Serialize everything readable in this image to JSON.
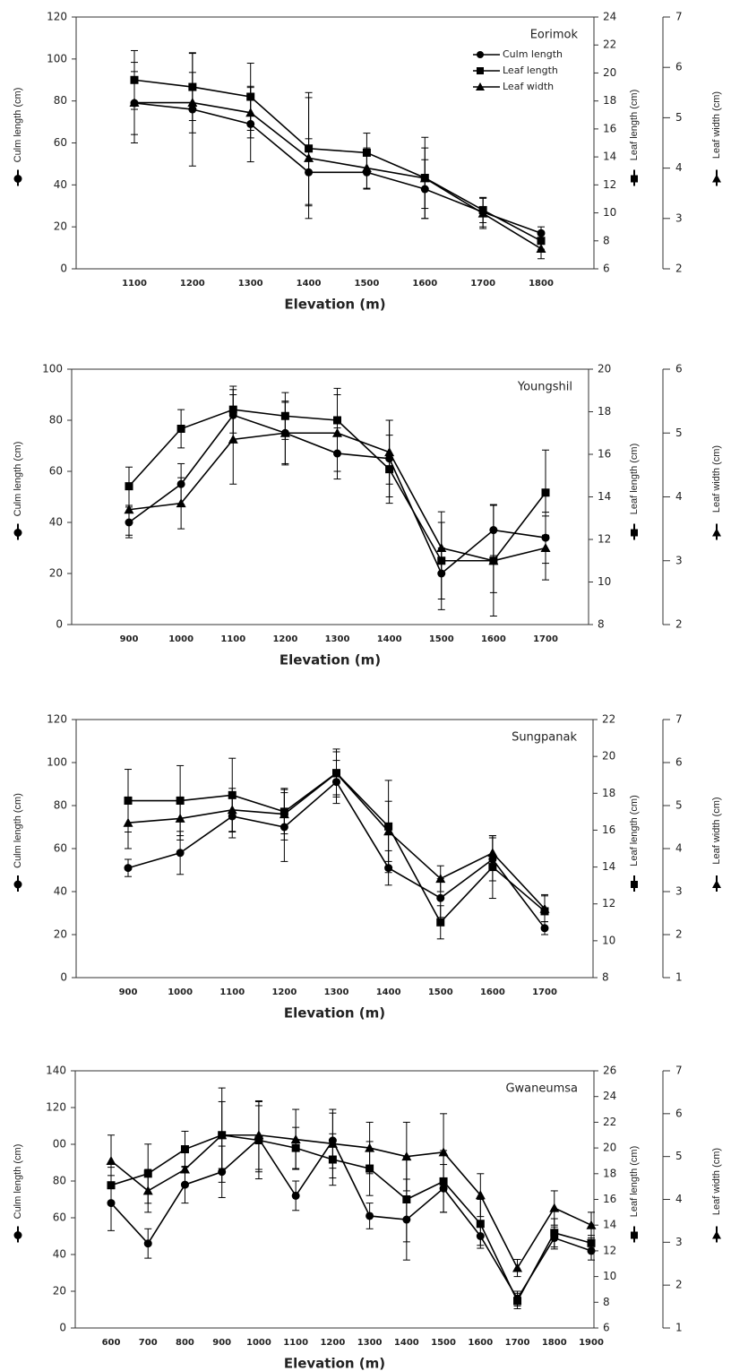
{
  "chart_data": [
    {
      "type": "line",
      "title": "Eorimok",
      "xlabel": "Elevation (m)",
      "ylabel": "Culm length (cm)",
      "y2label": "Leaf length (cm)",
      "y3label": "Leaf width (cm)",
      "categories": [
        "1100",
        "1200",
        "1300",
        "1400",
        "1500",
        "1600",
        "1700",
        "1800"
      ],
      "ylim": [
        0,
        120
      ],
      "yticks": [
        0,
        20,
        40,
        60,
        80,
        100,
        120
      ],
      "y2lim": [
        6,
        24
      ],
      "y2ticks": [
        6,
        8,
        10,
        12,
        14,
        16,
        18,
        20,
        22,
        24
      ],
      "y3lim": [
        2,
        7
      ],
      "y3ticks": [
        2,
        3,
        4,
        5,
        6,
        7
      ],
      "series": [
        {
          "name": "Culm length",
          "color": "#000000",
          "marker": "circle",
          "axis": "y",
          "values": [
            79,
            76,
            69,
            46,
            46,
            38,
            27,
            17
          ],
          "errors": [
            15,
            27,
            18,
            16,
            8,
            14,
            7,
            3
          ]
        },
        {
          "name": "Leaf length",
          "color": "#000000",
          "marker": "square",
          "axis": "y2",
          "values": [
            19.5,
            19.0,
            18.3,
            14.6,
            14.3,
            12.5,
            10.2,
            8.0
          ],
          "errors": [
            2.1,
            2.4,
            2.4,
            4.0,
            1.4,
            2.9,
            0.9,
            0.6
          ]
        },
        {
          "name": "Leaf width",
          "color": "#000000",
          "marker": "triangle",
          "axis": "y3",
          "values": [
            5.3,
            5.3,
            5.1,
            4.2,
            4.0,
            3.8,
            3.1,
            2.4
          ],
          "errors": [
            0.8,
            0.6,
            0.5,
            1.2,
            0.4,
            0.6,
            0.3,
            0.2
          ]
        }
      ]
    },
    {
      "type": "line",
      "title": "Youngshil",
      "xlabel": "Elevation (m)",
      "ylabel": "Culm length (cm)",
      "y2label": "Leaf length (cm)",
      "y3label": "Leaf width (cm)",
      "categories": [
        "900",
        "1000",
        "1100",
        "1200",
        "1300",
        "1400",
        "1500",
        "1600",
        "1700"
      ],
      "ylim": [
        0,
        100
      ],
      "yticks": [
        0,
        20,
        40,
        60,
        80,
        100
      ],
      "y2lim": [
        8,
        20
      ],
      "y2ticks": [
        8,
        10,
        12,
        14,
        16,
        18,
        20
      ],
      "y3lim": [
        2,
        6
      ],
      "y3ticks": [
        2,
        3,
        4,
        5,
        6
      ],
      "series": [
        {
          "color": "#000000",
          "marker": "circle",
          "axis": "y",
          "values": [
            40,
            55,
            82,
            75,
            67,
            65,
            20,
            37,
            34
          ],
          "errors": [
            6,
            8,
            10,
            12,
            10,
            15,
            10,
            10,
            10
          ]
        },
        {
          "color": "#000000",
          "marker": "square",
          "axis": "y2",
          "values": [
            14.5,
            17.2,
            18.1,
            17.8,
            17.6,
            15.3,
            11.0,
            11.0,
            14.2
          ],
          "errors": [
            0.9,
            0.9,
            1.1,
            1.1,
            1.5,
            1.6,
            2.3,
            2.6,
            2.0
          ]
        },
        {
          "color": "#000000",
          "marker": "triangle",
          "axis": "y3",
          "values": [
            3.8,
            3.9,
            4.9,
            5.0,
            5.0,
            4.7,
            3.2,
            3.0,
            3.2
          ],
          "errors": [
            0.4,
            0.4,
            0.7,
            0.5,
            0.6,
            0.5,
            0.4,
            0.5,
            0.5
          ]
        }
      ]
    },
    {
      "type": "line",
      "title": "Sungpanak",
      "xlabel": "Elevation (m)",
      "ylabel": "Culm length (cm)",
      "y2label": "Leaf length (cm)",
      "y3label": "Leaf width (cm)",
      "categories": [
        "900",
        "1000",
        "1100",
        "1200",
        "1300",
        "1400",
        "1500",
        "1600",
        "1700"
      ],
      "ylim": [
        0,
        120
      ],
      "yticks": [
        0,
        20,
        40,
        60,
        80,
        100,
        120
      ],
      "y2lim": [
        8,
        22
      ],
      "y2ticks": [
        8,
        10,
        12,
        14,
        16,
        18,
        20,
        22
      ],
      "y3lim": [
        1,
        7
      ],
      "y3ticks": [
        1,
        2,
        3,
        4,
        5,
        6,
        7
      ],
      "series": [
        {
          "color": "#000000",
          "marker": "circle",
          "axis": "y",
          "values": [
            51,
            58,
            75,
            70,
            91,
            51,
            37,
            55,
            23
          ],
          "errors": [
            4,
            10,
            10,
            16,
            10,
            8,
            9,
            10,
            3
          ]
        },
        {
          "color": "#000000",
          "marker": "square",
          "axis": "y2",
          "values": [
            17.6,
            17.6,
            17.9,
            17.0,
            19.1,
            16.2,
            11.0,
            14.0,
            11.6
          ],
          "errors": [
            1.7,
            1.9,
            2.0,
            1.2,
            1.3,
            2.5,
            0.9,
            1.7,
            0.9
          ]
        },
        {
          "color": "#000000",
          "marker": "triangle",
          "axis": "y3",
          "values": [
            4.6,
            4.7,
            4.9,
            4.8,
            5.75,
            4.4,
            3.3,
            3.9,
            2.6
          ],
          "errors": [
            0.6,
            0.5,
            0.5,
            0.6,
            0.5,
            0.7,
            0.3,
            0.4,
            0.3
          ]
        }
      ]
    },
    {
      "type": "line",
      "title": "Gwaneumsa",
      "xlabel": "Elevation (m)",
      "ylabel": "Culm length (cm)",
      "y2label": "Leaf length (cm)",
      "y3label": "Leaf width (cm)",
      "categories": [
        "600",
        "700",
        "800",
        "900",
        "1000",
        "1100",
        "1200",
        "1300",
        "1400",
        "1500",
        "1600",
        "1700",
        "1800",
        "1900"
      ],
      "ylim": [
        0,
        140
      ],
      "yticks": [
        0,
        20,
        40,
        60,
        80,
        {
          "value": 100,
          "label": "00"
        },
        120,
        140
      ],
      "y2lim": [
        6,
        26
      ],
      "y2ticks": [
        6,
        8,
        10,
        12,
        14,
        16,
        18,
        20,
        22,
        24,
        26
      ],
      "y3lim": [
        1,
        7
      ],
      "y3ticks": [
        1,
        2,
        3,
        4,
        5,
        6,
        7
      ],
      "series": [
        {
          "color": "#000000",
          "marker": "circle",
          "axis": "y",
          "values": [
            68,
            46,
            78,
            85,
            103,
            72,
            102,
            61,
            59,
            76,
            50,
            16,
            49,
            42
          ],
          "errors": [
            15,
            8,
            10,
            14,
            18,
            8,
            15,
            7,
            22,
            13,
            5,
            4,
            6,
            5
          ]
        },
        {
          "color": "#000000",
          "marker": "square",
          "axis": "y2",
          "values": [
            17.1,
            18.0,
            19.9,
            21.0,
            20.6,
            20.0,
            19.1,
            18.4,
            16.0,
            17.4,
            14.1,
            8.1,
            13.4,
            12.6
          ],
          "errors": [
            1.4,
            2.3,
            1.4,
            2.6,
            3.0,
            1.6,
            2.0,
            2.1,
            3.3,
            2.4,
            1.9,
            0.6,
            1.1,
            0.6
          ]
        },
        {
          "color": "#000000",
          "marker": "triangle",
          "axis": "y3",
          "values": [
            4.9,
            4.2,
            4.7,
            5.5,
            5.5,
            5.4,
            5.3,
            5.2,
            5.0,
            5.1,
            4.1,
            2.4,
            3.8,
            3.4
          ],
          "errors": [
            0.6,
            0.5,
            0.4,
            1.1,
            0.8,
            0.7,
            0.8,
            0.6,
            0.8,
            0.9,
            0.5,
            0.2,
            0.4,
            0.3
          ]
        }
      ]
    }
  ]
}
